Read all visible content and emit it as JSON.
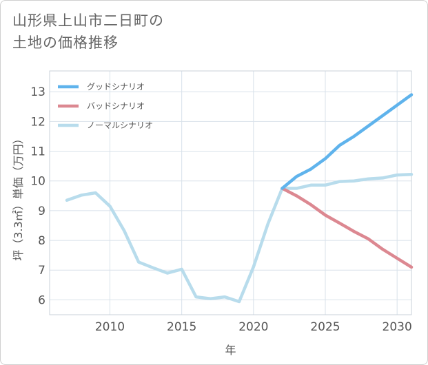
{
  "title_lines": [
    "山形県上山市二日町の",
    "土地の価格推移"
  ],
  "chart_data": {
    "type": "line",
    "title": "山形県上山市二日町の土地の価格推移",
    "xlabel": "年",
    "ylabel": "坪（3.3㎡）単価（万円）",
    "xlim": [
      2005.8,
      2031
    ],
    "ylim": [
      5.5,
      13.7
    ],
    "x_ticks": [
      2010,
      2015,
      2020,
      2025,
      2030
    ],
    "y_ticks": [
      6,
      7,
      8,
      9,
      10,
      11,
      12,
      13
    ],
    "grid": true,
    "legend_position": "top-left",
    "series": [
      {
        "name": "グッドシナリオ",
        "color": "#5fb3ec",
        "x": [
          2022,
          2023,
          2024,
          2025,
          2026,
          2027,
          2028,
          2029,
          2030,
          2031
        ],
        "values": [
          9.75,
          10.15,
          10.4,
          10.75,
          11.2,
          11.5,
          11.85,
          12.2,
          12.55,
          12.9
        ]
      },
      {
        "name": "バッドシナリオ",
        "color": "#dc8891",
        "x": [
          2022,
          2023,
          2024,
          2025,
          2026,
          2027,
          2028,
          2029,
          2030,
          2031
        ],
        "values": [
          9.75,
          9.5,
          9.2,
          8.85,
          8.58,
          8.3,
          8.05,
          7.7,
          7.4,
          7.1
        ]
      },
      {
        "name": "ノーマルシナリオ",
        "color": "#b8dcec",
        "x": [
          2007,
          2008,
          2009,
          2010,
          2011,
          2012,
          2013,
          2014,
          2015,
          2016,
          2017,
          2018,
          2019,
          2020,
          2021,
          2022,
          2023,
          2024,
          2025,
          2026,
          2027,
          2028,
          2029,
          2030,
          2031
        ],
        "values": [
          9.35,
          9.52,
          9.6,
          9.15,
          8.32,
          7.27,
          7.08,
          6.9,
          7.03,
          6.1,
          6.04,
          6.1,
          5.94,
          7.11,
          8.55,
          9.75,
          9.75,
          9.86,
          9.86,
          9.98,
          10.0,
          10.07,
          10.1,
          10.2,
          10.22
        ]
      }
    ]
  }
}
